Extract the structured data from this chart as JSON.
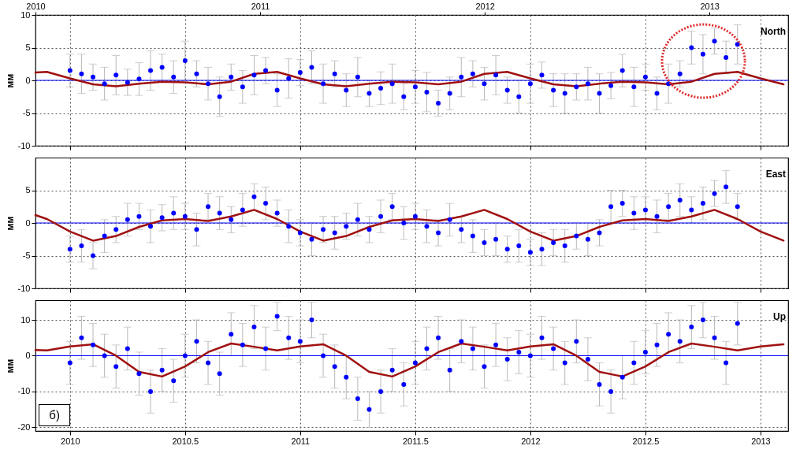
{
  "chart_data": [
    {
      "type": "scatter",
      "title": "North",
      "ylabel": "мм",
      "x": [
        2010,
        2010.05,
        2010.1,
        2010.15,
        2010.2,
        2010.25,
        2010.3,
        2010.35,
        2010.4,
        2010.45,
        2010.5,
        2010.55,
        2010.6,
        2010.65,
        2010.7,
        2010.75,
        2010.8,
        2010.85,
        2010.9,
        2010.95,
        2011,
        2011.05,
        2011.1,
        2011.15,
        2011.2,
        2011.25,
        2011.3,
        2011.35,
        2011.4,
        2011.45,
        2011.5,
        2011.55,
        2011.6,
        2011.65,
        2011.7,
        2011.75,
        2011.8,
        2011.85,
        2011.9,
        2011.95,
        2012,
        2012.05,
        2012.1,
        2012.15,
        2012.2,
        2012.25,
        2012.3,
        2012.35,
        2012.4,
        2012.45,
        2012.5,
        2012.55,
        2012.6,
        2012.65,
        2012.7,
        2012.75,
        2012.8,
        2012.85,
        2012.9
      ],
      "xlim": [
        2009.85,
        2013.12
      ],
      "xticks": [
        2010,
        2010.5,
        2011,
        2011.5,
        2012,
        2012.5,
        2013
      ],
      "ylim": [
        -10,
        10
      ],
      "yticks": [
        -10,
        -5,
        0,
        5,
        10
      ],
      "x2lim": [
        2010,
        2013.35
      ],
      "x2ticks": [
        2010,
        2011,
        2012,
        2013
      ],
      "tick_labels": "y",
      "grid": true,
      "ref_lines": [
        {
          "axis": "y",
          "value": 0,
          "color": "#0000ff"
        }
      ],
      "series": [
        {
          "color": "#0000ff",
          "values": [
            1.5,
            1.0,
            0.5,
            -0.5,
            0.8,
            -0.3,
            0.2,
            1.5,
            2.0,
            0.5,
            3.0,
            1.0,
            -0.5,
            -2.5,
            0.5,
            -1.0,
            0.8,
            1.5,
            -1.5,
            0.3,
            1.2,
            2.0,
            -0.5,
            1.0,
            -1.5,
            0.5,
            -2.0,
            -1.2,
            -0.5,
            -2.5,
            -1.0,
            -1.8,
            -3.5,
            -2.0,
            0.5,
            1.0,
            -0.5,
            0.8,
            -1.5,
            -2.5,
            -0.5,
            0.8,
            -1.5,
            -2.0,
            -1.0,
            -0.5,
            -2.0,
            -0.8,
            1.5,
            -1.0,
            0.5,
            -2.0,
            -0.5,
            1.0,
            5.0,
            4.0,
            6.0,
            3.5,
            5.5
          ],
          "errors": [
            2.5,
            3,
            2,
            2.5,
            3,
            2,
            2.5,
            3,
            2,
            2.5,
            3,
            2,
            2.5,
            3,
            2,
            2.5,
            3,
            2,
            2.5,
            3,
            2,
            2.5,
            3,
            2,
            2.5,
            3,
            2,
            2.5,
            3,
            2,
            2.5,
            3,
            2,
            2.5,
            3,
            2,
            2.5,
            3,
            2,
            2.5,
            3,
            2,
            2.5,
            3,
            2,
            2.5,
            3,
            2,
            2.5,
            3,
            2,
            2.5,
            3,
            2,
            2.5,
            3,
            2,
            2.5,
            3
          ]
        },
        {
          "type": "line",
          "color": "#a01010",
          "x": [
            2009.85,
            2009.9,
            2010,
            2010.1,
            2010.2,
            2010.3,
            2010.4,
            2010.5,
            2010.6,
            2010.7,
            2010.8,
            2010.9,
            2011,
            2011.1,
            2011.2,
            2011.3,
            2011.4,
            2011.5,
            2011.6,
            2011.7,
            2011.8,
            2011.9,
            2012,
            2012.1,
            2012.2,
            2012.3,
            2012.4,
            2012.5,
            2012.6,
            2012.7,
            2012.8,
            2012.9,
            2013,
            2013.1
          ],
          "values": [
            1.2,
            1.3,
            0.3,
            -0.6,
            -0.9,
            -0.5,
            -0.2,
            -0.3,
            -0.6,
            -0.2,
            1.0,
            1.3,
            0.3,
            -0.6,
            -0.9,
            -0.5,
            -0.2,
            -0.3,
            -0.6,
            -0.2,
            1.0,
            1.3,
            0.3,
            -0.6,
            -0.9,
            -0.5,
            -0.2,
            -0.3,
            -0.6,
            -0.2,
            1.0,
            1.3,
            0.3,
            -0.6
          ]
        }
      ]
    },
    {
      "type": "scatter",
      "title": "East",
      "ylabel": "мм",
      "x": [
        2010,
        2010.05,
        2010.1,
        2010.15,
        2010.2,
        2010.25,
        2010.3,
        2010.35,
        2010.4,
        2010.45,
        2010.5,
        2010.55,
        2010.6,
        2010.65,
        2010.7,
        2010.75,
        2010.8,
        2010.85,
        2010.9,
        2010.95,
        2011,
        2011.05,
        2011.1,
        2011.15,
        2011.2,
        2011.25,
        2011.3,
        2011.35,
        2011.4,
        2011.45,
        2011.5,
        2011.55,
        2011.6,
        2011.65,
        2011.7,
        2011.75,
        2011.8,
        2011.85,
        2011.9,
        2011.95,
        2012,
        2012.05,
        2012.1,
        2012.15,
        2012.2,
        2012.25,
        2012.3,
        2012.35,
        2012.4,
        2012.45,
        2012.5,
        2012.55,
        2012.6,
        2012.65,
        2012.7,
        2012.75,
        2012.8,
        2012.85,
        2012.9
      ],
      "xlim": [
        2009.85,
        2013.12
      ],
      "xticks": [
        2010,
        2010.5,
        2011,
        2011.5,
        2012,
        2012.5,
        2013
      ],
      "ylim": [
        -10,
        10
      ],
      "yticks": [
        -10,
        -5,
        0,
        5
      ],
      "tick_labels": "y",
      "grid": true,
      "ref_lines": [
        {
          "axis": "y",
          "value": 0,
          "color": "#0000ff"
        }
      ],
      "series": [
        {
          "color": "#0000ff",
          "values": [
            -4.0,
            -3.5,
            -5.0,
            -2.0,
            -1.0,
            0.5,
            1.0,
            -0.5,
            0.8,
            1.5,
            1.0,
            -1.0,
            2.5,
            1.5,
            0.5,
            2.0,
            4.0,
            3.0,
            1.5,
            -0.5,
            -1.5,
            -2.5,
            -1.0,
            -1.5,
            -0.5,
            0.5,
            -1.0,
            1.0,
            2.5,
            0.0,
            1.0,
            -0.5,
            -1.5,
            0.5,
            -1.0,
            -2.0,
            -3.0,
            -2.5,
            -4.0,
            -3.5,
            -4.5,
            -4.0,
            -3.0,
            -3.5,
            -2.0,
            -2.5,
            -1.5,
            2.5,
            3.0,
            1.5,
            2.0,
            1.0,
            2.5,
            3.5,
            2.0,
            3.0,
            4.5,
            5.5,
            2.5
          ],
          "errors": [
            2,
            2.5,
            2,
            2.5,
            2,
            2.5,
            2,
            2.5,
            2,
            2.5,
            2,
            2.5,
            2,
            2.5,
            2,
            2.5,
            2,
            2.5,
            2,
            2.5,
            2,
            2.5,
            2,
            2.5,
            2,
            2.5,
            2,
            2.5,
            2,
            2.5,
            2,
            2.5,
            2,
            2.5,
            2,
            2.5,
            2,
            2.5,
            2,
            2.5,
            2,
            2.5,
            2,
            2.5,
            2,
            2.5,
            2,
            2.5,
            2,
            2.5,
            2,
            2.5,
            2,
            2.5,
            2,
            2.5,
            2,
            2.5,
            2
          ]
        },
        {
          "type": "line",
          "color": "#a01010",
          "x": [
            2009.85,
            2009.9,
            2010,
            2010.1,
            2010.2,
            2010.3,
            2010.4,
            2010.5,
            2010.6,
            2010.7,
            2010.8,
            2010.9,
            2011,
            2011.1,
            2011.2,
            2011.3,
            2011.4,
            2011.5,
            2011.6,
            2011.7,
            2011.8,
            2011.9,
            2012,
            2012.1,
            2012.2,
            2012.3,
            2012.4,
            2012.5,
            2012.6,
            2012.7,
            2012.8,
            2012.9,
            2013,
            2013.1
          ],
          "values": [
            1.2,
            0.6,
            -1.3,
            -2.7,
            -2.0,
            -0.6,
            0.4,
            0.6,
            0.3,
            1.0,
            2.0,
            0.6,
            -1.3,
            -2.7,
            -2.0,
            -0.6,
            0.4,
            0.6,
            0.3,
            1.0,
            2.0,
            0.6,
            -1.3,
            -2.7,
            -2.0,
            -0.6,
            0.4,
            0.6,
            0.3,
            1.0,
            2.0,
            0.6,
            -1.3,
            -2.7
          ]
        }
      ]
    },
    {
      "type": "scatter",
      "title": "Up",
      "ylabel": "мм",
      "annotations": [
        "б)"
      ],
      "x": [
        2010,
        2010.05,
        2010.1,
        2010.15,
        2010.2,
        2010.25,
        2010.3,
        2010.35,
        2010.4,
        2010.45,
        2010.5,
        2010.55,
        2010.6,
        2010.65,
        2010.7,
        2010.75,
        2010.8,
        2010.85,
        2010.9,
        2010.95,
        2011,
        2011.05,
        2011.1,
        2011.15,
        2011.2,
        2011.25,
        2011.3,
        2011.35,
        2011.4,
        2011.45,
        2011.5,
        2011.55,
        2011.6,
        2011.65,
        2011.7,
        2011.75,
        2011.8,
        2011.85,
        2011.9,
        2011.95,
        2012,
        2012.05,
        2012.1,
        2012.15,
        2012.2,
        2012.25,
        2012.3,
        2012.35,
        2012.4,
        2012.45,
        2012.5,
        2012.55,
        2012.6,
        2012.65,
        2012.7,
        2012.75,
        2012.8,
        2012.85,
        2012.9
      ],
      "xlim": [
        2009.85,
        2013.12
      ],
      "xticks": [
        2010,
        2010.5,
        2011,
        2011.5,
        2012,
        2012.5,
        2013
      ],
      "ylim": [
        -21,
        15.5
      ],
      "yticks": [
        -20,
        -10,
        0,
        10
      ],
      "grid": true,
      "ref_lines": [
        {
          "axis": "y",
          "value": 0,
          "color": "#0000ff"
        }
      ],
      "series": [
        {
          "color": "#0000ff",
          "values": [
            -2,
            5,
            3,
            0,
            -3,
            2,
            -5,
            -10,
            -4,
            -7,
            0,
            4,
            -2,
            -5,
            6,
            3,
            8,
            2,
            11,
            5,
            4,
            10,
            0,
            -3,
            -6,
            -12,
            -15,
            -10,
            -4,
            -8,
            -2,
            2,
            5,
            -4,
            4,
            2,
            -3,
            3,
            -1,
            1,
            0,
            5,
            2,
            -2,
            4,
            -1,
            -8,
            -10,
            -6,
            -2,
            1,
            3,
            6,
            4,
            8,
            10,
            5,
            -2,
            9
          ],
          "errors": [
            6,
            6,
            6,
            6,
            6,
            6,
            6,
            6,
            6,
            6,
            6,
            6,
            6,
            6,
            6,
            6,
            6,
            6,
            4,
            6,
            6,
            5,
            6,
            6,
            6,
            6,
            5,
            6,
            6,
            6,
            6,
            6,
            6,
            6,
            6,
            6,
            6,
            6,
            6,
            6,
            6,
            6,
            6,
            6,
            6,
            6,
            6,
            6,
            6,
            6,
            6,
            6,
            6,
            6,
            6,
            5,
            6,
            6,
            6
          ]
        },
        {
          "type": "line",
          "color": "#a01010",
          "x": [
            2009.85,
            2009.9,
            2010,
            2010.1,
            2010.2,
            2010.3,
            2010.4,
            2010.5,
            2010.6,
            2010.7,
            2010.8,
            2010.9,
            2011,
            2011.1,
            2011.2,
            2011.3,
            2011.4,
            2011.5,
            2011.6,
            2011.7,
            2011.8,
            2011.9,
            2012,
            2012.1,
            2012.2,
            2012.3,
            2012.4,
            2012.5,
            2012.6,
            2012.7,
            2012.8,
            2012.9,
            2013,
            2013.1
          ],
          "values": [
            1.6,
            1.5,
            2.6,
            3.2,
            0.0,
            -4.5,
            -5.8,
            -3.0,
            1.0,
            3.4,
            2.5,
            1.5,
            2.6,
            3.2,
            0.0,
            -4.5,
            -5.8,
            -3.0,
            1.0,
            3.4,
            2.5,
            1.5,
            2.6,
            3.2,
            0.0,
            -4.5,
            -5.8,
            -3.0,
            1.0,
            3.4,
            2.5,
            1.5,
            2.6,
            3.2
          ]
        }
      ]
    }
  ]
}
